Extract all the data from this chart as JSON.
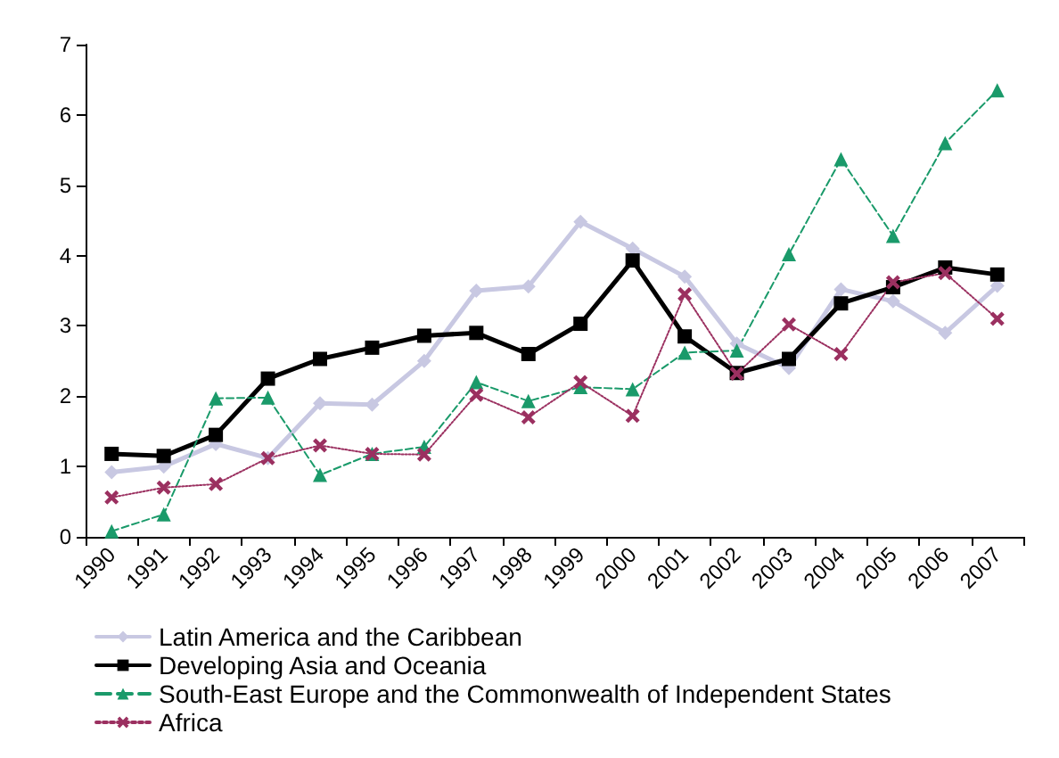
{
  "chart_data": {
    "type": "line",
    "categories": [
      "1990",
      "1991",
      "1992",
      "1993",
      "1994",
      "1995",
      "1996",
      "1997",
      "1998",
      "1999",
      "2000",
      "2001",
      "2002",
      "2003",
      "2004",
      "2005",
      "2006",
      "2007"
    ],
    "ylim": [
      0,
      7
    ],
    "yticks": [
      0,
      1,
      2,
      3,
      4,
      5,
      6,
      7
    ],
    "grid": false,
    "legend": "bottom",
    "series": [
      {
        "name": "Latin America and the Caribbean",
        "color": "#c8c8e2",
        "marker": "diamond",
        "line_style": "solid",
        "values": [
          0.92,
          1.0,
          1.32,
          1.12,
          1.9,
          1.88,
          2.5,
          3.5,
          3.56,
          4.48,
          4.1,
          3.7,
          2.75,
          2.4,
          3.52,
          3.35,
          2.9,
          3.57
        ]
      },
      {
        "name": "Developing Asia and Oceania",
        "color": "#000000",
        "marker": "square",
        "line_style": "solid",
        "values": [
          1.18,
          1.15,
          1.45,
          2.25,
          2.53,
          2.69,
          2.86,
          2.9,
          2.6,
          3.03,
          3.93,
          2.85,
          2.33,
          2.53,
          3.32,
          3.55,
          3.83,
          3.73
        ]
      },
      {
        "name": "South-East Europe and the Commonwealth of Independent States",
        "color": "#1a9a6a",
        "marker": "triangle",
        "line_style": "dashed",
        "values": [
          0.08,
          0.32,
          1.97,
          1.98,
          0.88,
          1.18,
          1.28,
          2.2,
          1.93,
          2.13,
          2.1,
          2.62,
          2.65,
          4.02,
          5.37,
          4.28,
          5.6,
          6.35
        ]
      },
      {
        "name": "Africa",
        "color": "#9b3060",
        "marker": "cross",
        "line_style": "dotted",
        "values": [
          0.56,
          0.7,
          0.75,
          1.12,
          1.3,
          1.18,
          1.17,
          2.02,
          1.7,
          2.2,
          1.72,
          3.45,
          2.32,
          3.02,
          2.6,
          3.62,
          3.75,
          3.1
        ]
      }
    ]
  }
}
